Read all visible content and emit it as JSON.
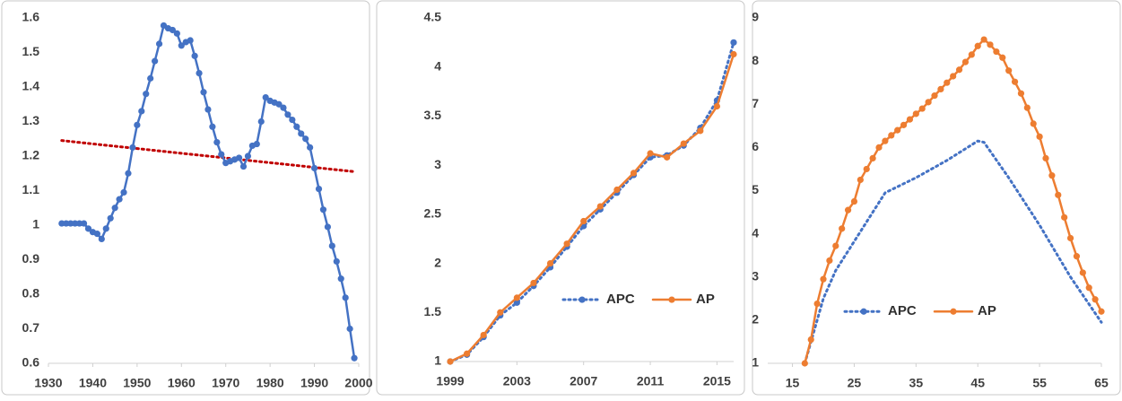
{
  "chart_data": [
    {
      "type": "line",
      "xlim": [
        1930,
        2000
      ],
      "xticks": [
        1930,
        1940,
        1950,
        1960,
        1970,
        1980,
        1990,
        2000
      ],
      "ylim": [
        0.6,
        1.6
      ],
      "yticks": [
        0.6,
        0.7,
        0.8,
        0.9,
        1,
        1.1,
        1.2,
        1.3,
        1.4,
        1.5,
        1.6
      ],
      "grid": false,
      "x": [
        1933,
        1934,
        1935,
        1936,
        1937,
        1938,
        1939,
        1940,
        1941,
        1942,
        1943,
        1944,
        1945,
        1946,
        1947,
        1948,
        1949,
        1950,
        1951,
        1952,
        1953,
        1954,
        1955,
        1956,
        1957,
        1958,
        1959,
        1960,
        1961,
        1962,
        1963,
        1964,
        1965,
        1966,
        1967,
        1968,
        1969,
        1970,
        1971,
        1972,
        1973,
        1974,
        1975,
        1976,
        1977,
        1978,
        1979,
        1980,
        1981,
        1982,
        1983,
        1984,
        1985,
        1986,
        1987,
        1988,
        1989,
        1990,
        1991,
        1992,
        1993,
        1994,
        1995,
        1996,
        1997,
        1998,
        1999
      ],
      "series": [
        {
          "color": "#4472c4",
          "dash": "solid",
          "markers": true,
          "values": [
            1.005,
            1.005,
            1.005,
            1.005,
            1.005,
            1.005,
            0.99,
            0.98,
            0.975,
            0.96,
            0.99,
            1.02,
            1.05,
            1.075,
            1.095,
            1.15,
            1.225,
            1.29,
            1.33,
            1.38,
            1.425,
            1.475,
            1.525,
            1.578,
            1.57,
            1.565,
            1.555,
            1.52,
            1.53,
            1.535,
            1.49,
            1.44,
            1.385,
            1.335,
            1.285,
            1.24,
            1.205,
            1.18,
            1.185,
            1.19,
            1.195,
            1.17,
            1.2,
            1.23,
            1.235,
            1.3,
            1.37,
            1.36,
            1.355,
            1.35,
            1.34,
            1.32,
            1.305,
            1.285,
            1.265,
            1.25,
            1.225,
            1.165,
            1.105,
            1.045,
            0.995,
            0.94,
            0.895,
            0.845,
            0.79,
            0.7,
            0.615
          ]
        }
      ],
      "trendline": {
        "x": [
          1933,
          1999
        ],
        "values": [
          1.245,
          1.155
        ],
        "color": "#c00000"
      }
    },
    {
      "type": "line",
      "xlim": [
        1999,
        2016
      ],
      "xticks": [
        1999,
        2003,
        2007,
        2011,
        2015
      ],
      "ylim": [
        1,
        4.5
      ],
      "yticks": [
        1,
        1.5,
        2,
        2.5,
        3,
        3.5,
        4,
        4.5
      ],
      "grid": false,
      "legend": "lower-right",
      "x": [
        1999,
        2000,
        2001,
        2002,
        2003,
        2004,
        2005,
        2006,
        2007,
        2008,
        2009,
        2010,
        2011,
        2012,
        2013,
        2014,
        2015,
        2016
      ],
      "series": [
        {
          "name": "APC",
          "color": "#4472c4",
          "dash": "dotted",
          "markers": true,
          "values": [
            1.0,
            1.07,
            1.25,
            1.47,
            1.6,
            1.77,
            1.96,
            2.17,
            2.38,
            2.55,
            2.72,
            2.9,
            3.08,
            3.1,
            3.2,
            3.38,
            3.66,
            4.25
          ]
        },
        {
          "name": "AP",
          "color": "#ed7d31",
          "dash": "solid",
          "markers": true,
          "values": [
            1.0,
            1.08,
            1.27,
            1.5,
            1.65,
            1.8,
            2.0,
            2.2,
            2.43,
            2.58,
            2.75,
            2.92,
            3.12,
            3.08,
            3.22,
            3.35,
            3.6,
            4.13
          ]
        }
      ]
    },
    {
      "type": "line",
      "xlim": [
        11,
        65
      ],
      "xticks": [
        15,
        25,
        35,
        45,
        55,
        65
      ],
      "ylim": [
        1,
        9
      ],
      "yticks": [
        1,
        2,
        3,
        4,
        5,
        6,
        7,
        8,
        9
      ],
      "grid": false,
      "legend": "lower-center",
      "series": [
        {
          "name": "APC",
          "color": "#4472c4",
          "dash": "dotted",
          "markers": false,
          "x": [
            17,
            18,
            19,
            20,
            22,
            24,
            26,
            28,
            30,
            35,
            40,
            45,
            46,
            50,
            55,
            60,
            65
          ],
          "values": [
            1.0,
            1.5,
            2.0,
            2.5,
            3.15,
            3.6,
            4.05,
            4.5,
            4.95,
            5.3,
            5.7,
            6.15,
            6.12,
            5.3,
            4.2,
            3.0,
            1.95
          ]
        },
        {
          "name": "AP",
          "color": "#ed7d31",
          "dash": "solid",
          "markers": true,
          "x": [
            17,
            18,
            19,
            20,
            21,
            22,
            23,
            24,
            25,
            26,
            27,
            28,
            29,
            30,
            31,
            32,
            33,
            34,
            35,
            36,
            37,
            38,
            39,
            40,
            41,
            42,
            43,
            44,
            45,
            46,
            47,
            48,
            49,
            50,
            51,
            52,
            53,
            54,
            55,
            56,
            57,
            58,
            59,
            60,
            61,
            62,
            63,
            64,
            65
          ],
          "values": [
            1.0,
            1.55,
            2.38,
            2.95,
            3.38,
            3.72,
            4.12,
            4.55,
            4.75,
            5.25,
            5.5,
            5.75,
            6.0,
            6.15,
            6.28,
            6.4,
            6.52,
            6.65,
            6.78,
            6.9,
            7.05,
            7.2,
            7.35,
            7.5,
            7.65,
            7.8,
            7.98,
            8.15,
            8.35,
            8.5,
            8.38,
            8.22,
            8.08,
            7.78,
            7.52,
            7.25,
            6.92,
            6.55,
            6.25,
            5.75,
            5.35,
            4.9,
            4.38,
            3.9,
            3.48,
            3.1,
            2.75,
            2.48,
            2.2
          ]
        }
      ]
    }
  ]
}
